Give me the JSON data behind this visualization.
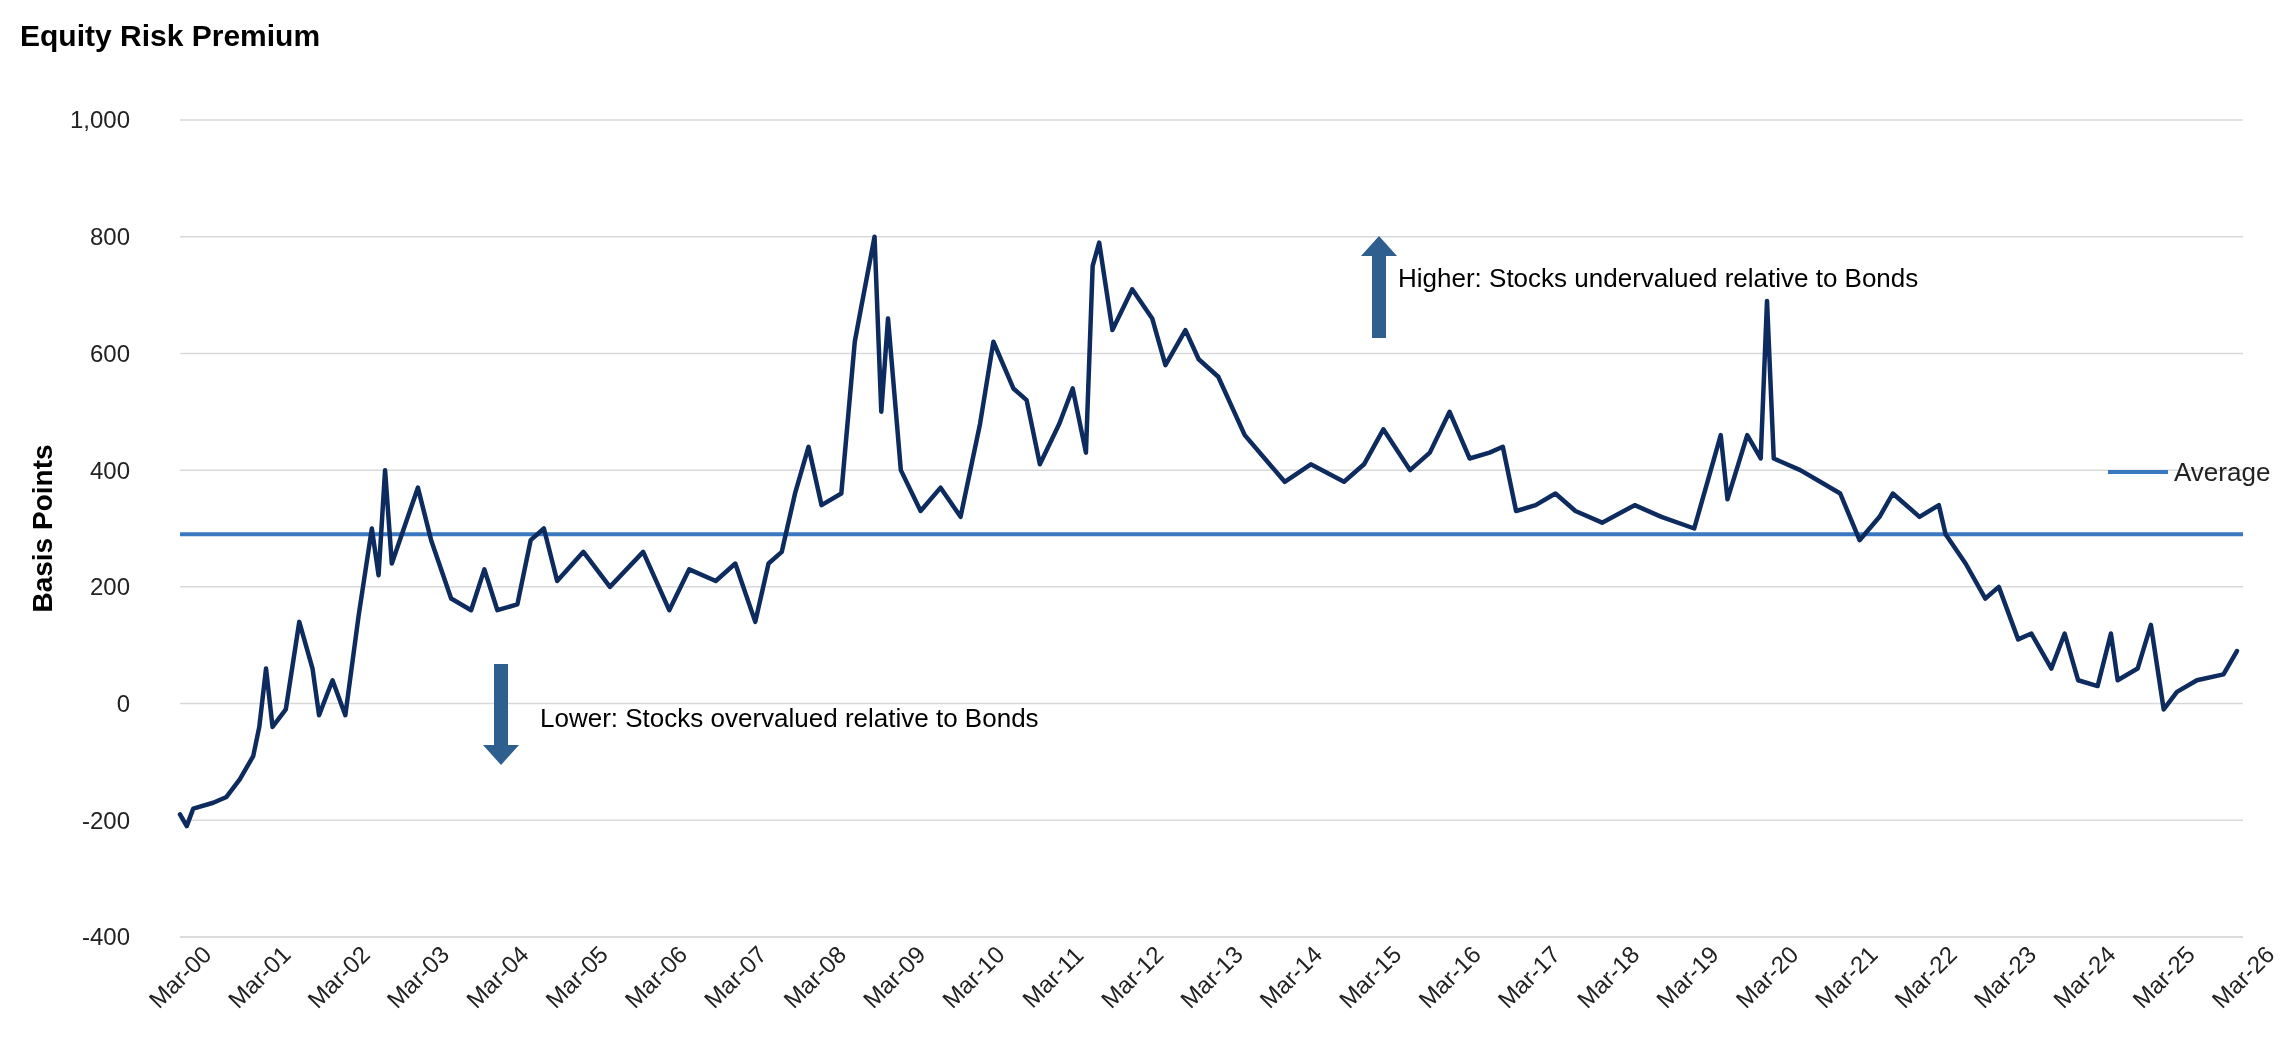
{
  "chart_data": {
    "type": "line",
    "title": "Equity Risk Premium",
    "ylabel": "Basis Points",
    "xlim": [
      "2000-03",
      "2026-03"
    ],
    "xticks": [
      {
        "value": "2000-03",
        "label": "Mar-00"
      },
      {
        "value": "2001-03",
        "label": "Mar-01"
      },
      {
        "value": "2002-03",
        "label": "Mar-02"
      },
      {
        "value": "2003-03",
        "label": "Mar-03"
      },
      {
        "value": "2004-03",
        "label": "Mar-04"
      },
      {
        "value": "2005-03",
        "label": "Mar-05"
      },
      {
        "value": "2006-03",
        "label": "Mar-06"
      },
      {
        "value": "2007-03",
        "label": "Mar-07"
      },
      {
        "value": "2008-03",
        "label": "Mar-08"
      },
      {
        "value": "2009-03",
        "label": "Mar-09"
      },
      {
        "value": "2010-03",
        "label": "Mar-10"
      },
      {
        "value": "2011-03",
        "label": "Mar-11"
      },
      {
        "value": "2012-03",
        "label": "Mar-12"
      },
      {
        "value": "2013-03",
        "label": "Mar-13"
      },
      {
        "value": "2014-03",
        "label": "Mar-14"
      },
      {
        "value": "2015-03",
        "label": "Mar-15"
      },
      {
        "value": "2016-03",
        "label": "Mar-16"
      },
      {
        "value": "2017-03",
        "label": "Mar-17"
      },
      {
        "value": "2018-03",
        "label": "Mar-18"
      },
      {
        "value": "2019-03",
        "label": "Mar-19"
      },
      {
        "value": "2020-03",
        "label": "Mar-20"
      },
      {
        "value": "2021-03",
        "label": "Mar-21"
      },
      {
        "value": "2022-03",
        "label": "Mar-22"
      },
      {
        "value": "2023-03",
        "label": "Mar-23"
      },
      {
        "value": "2024-03",
        "label": "Mar-24"
      },
      {
        "value": "2025-03",
        "label": "Mar-25"
      },
      {
        "value": "2026-03",
        "label": "Mar-26"
      }
    ],
    "ylim": [
      -400,
      1000
    ],
    "yticks": [
      {
        "value": -400,
        "label": "-400"
      },
      {
        "value": -200,
        "label": "-200"
      },
      {
        "value": 0,
        "label": "0"
      },
      {
        "value": 200,
        "label": "200"
      },
      {
        "value": 400,
        "label": "400"
      },
      {
        "value": 600,
        "label": "600"
      },
      {
        "value": 800,
        "label": "800"
      },
      {
        "value": 1000,
        "label": "1,000"
      }
    ],
    "x": [
      "2000-03",
      "2000-04",
      "2000-05",
      "2000-08",
      "2000-10",
      "2000-12",
      "2001-02",
      "2001-03",
      "2001-04",
      "2001-05",
      "2001-07",
      "2001-09",
      "2001-11",
      "2001-12",
      "2002-02",
      "2002-04",
      "2002-06",
      "2002-08",
      "2002-09",
      "2002-10",
      "2002-11",
      "2003-03",
      "2003-05",
      "2003-08",
      "2003-11",
      "2004-01",
      "2004-03",
      "2004-06",
      "2004-08",
      "2004-10",
      "2004-12",
      "2005-04",
      "2005-08",
      "2006-01",
      "2006-05",
      "2006-08",
      "2006-12",
      "2007-03",
      "2007-06",
      "2007-08",
      "2007-10",
      "2007-12",
      "2008-02",
      "2008-04",
      "2008-07",
      "2008-09",
      "2008-10",
      "2008-12",
      "2009-01",
      "2009-02",
      "2009-04",
      "2009-07",
      "2009-10",
      "2010-01",
      "2010-04",
      "2010-06",
      "2010-09",
      "2010-11",
      "2011-01",
      "2011-04",
      "2011-06",
      "2011-08",
      "2011-09",
      "2011-10",
      "2011-12",
      "2012-03",
      "2012-06",
      "2012-08",
      "2012-11",
      "2013-01",
      "2013-04",
      "2013-08",
      "2013-11",
      "2014-02",
      "2014-06",
      "2014-11",
      "2015-02",
      "2015-05",
      "2015-09",
      "2015-12",
      "2016-03",
      "2016-06",
      "2016-09",
      "2016-11",
      "2017-01",
      "2017-04",
      "2017-07",
      "2017-10",
      "2018-02",
      "2018-07",
      "2018-11",
      "2019-04",
      "2019-08",
      "2019-09",
      "2019-12",
      "2020-02",
      "2020-03",
      "2020-04",
      "2020-08",
      "2020-11",
      "2021-02",
      "2021-05",
      "2021-08",
      "2021-10",
      "2022-02",
      "2022-05",
      "2022-06",
      "2022-09",
      "2022-12",
      "2023-02",
      "2023-05",
      "2023-07",
      "2023-10",
      "2023-12",
      "2024-02",
      "2024-05",
      "2024-07",
      "2024-08",
      "2024-11",
      "2025-01",
      "2025-03",
      "2025-05",
      "2025-08",
      "2025-12",
      "2026-02"
    ],
    "series": [
      {
        "color": "#0d2b5e",
        "values": [
          -190,
          -210,
          -180,
          -170,
          -160,
          -130,
          -90,
          -40,
          60,
          -40,
          -10,
          140,
          60,
          -20,
          40,
          -20,
          150,
          300,
          220,
          400,
          240,
          370,
          280,
          180,
          160,
          230,
          160,
          170,
          280,
          300,
          210,
          260,
          200,
          260,
          160,
          230,
          210,
          240,
          140,
          240,
          260,
          360,
          440,
          340,
          360,
          620,
          680,
          800,
          500,
          660,
          400,
          330,
          370,
          320,
          480,
          620,
          540,
          520,
          410,
          480,
          540,
          430,
          750,
          790,
          640,
          710,
          660,
          580,
          640,
          590,
          560,
          460,
          420,
          380,
          410,
          380,
          410,
          470,
          400,
          430,
          500,
          420,
          430,
          440,
          330,
          340,
          360,
          330,
          310,
          340,
          320,
          300,
          460,
          350,
          460,
          420,
          690,
          420,
          400,
          380,
          360,
          280,
          320,
          360,
          320,
          340,
          290,
          240,
          180,
          200,
          110,
          120,
          60,
          120,
          40,
          30,
          120,
          40,
          60,
          135,
          -10,
          20,
          40,
          50,
          90
        ]
      }
    ],
    "ref_lines": [
      {
        "axis": "y",
        "value": 290,
        "label": "Average",
        "color": "#3a78c2"
      }
    ],
    "legend": "right",
    "grid": "y",
    "marker": "none",
    "line_style": "solid",
    "annotations": [
      "Higher: Stocks undervalued relative to Bonds",
      "Lower: Stocks overvalued relative to Bonds"
    ]
  }
}
